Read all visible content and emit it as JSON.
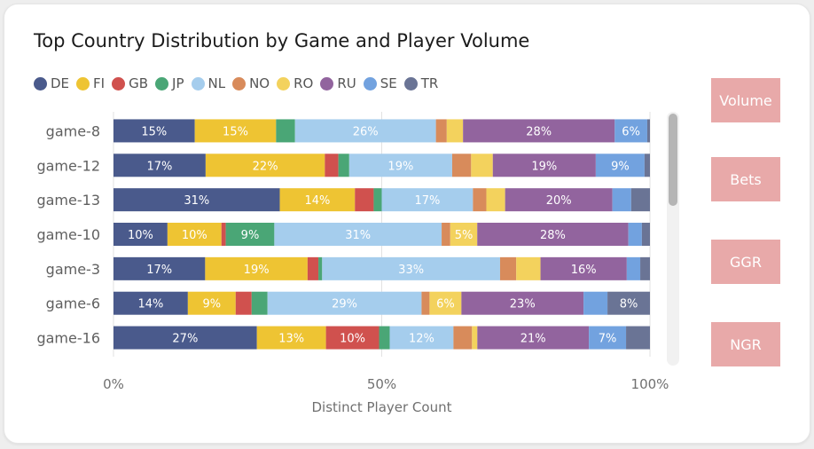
{
  "title": "Top Country Distribution by Game and Player Volume",
  "legend": [
    {
      "label": "DE",
      "color": "#4a5a8c"
    },
    {
      "label": "FI",
      "color": "#eec433"
    },
    {
      "label": "GB",
      "color": "#d0514e"
    },
    {
      "label": "JP",
      "color": "#4aa676"
    },
    {
      "label": "NL",
      "color": "#a5cded"
    },
    {
      "label": "NO",
      "color": "#d88b5b"
    },
    {
      "label": "RO",
      "color": "#f3d25d"
    },
    {
      "label": "RU",
      "color": "#92649e"
    },
    {
      "label": "SE",
      "color": "#72a2df"
    },
    {
      "label": "TR",
      "color": "#6a7495"
    }
  ],
  "buttons": {
    "volume": "Volume",
    "bets": "Bets",
    "ggr": "GGR",
    "ngr": "NGR"
  },
  "chart_data": {
    "type": "bar",
    "orientation": "horizontal",
    "stacked": "100%",
    "title": "Top Country Distribution by Game and Player Volume",
    "xlabel": "Distinct Player Count",
    "ylabel": "",
    "xlim": [
      0,
      100
    ],
    "xticks": [
      "0%",
      "50%",
      "100%"
    ],
    "categories": [
      "game-8",
      "game-12",
      "game-13",
      "game-10",
      "game-3",
      "game-6",
      "game-16"
    ],
    "series": [
      {
        "name": "DE",
        "color": "#4a5a8c",
        "values": [
          15,
          17,
          31,
          10,
          17,
          14,
          27
        ]
      },
      {
        "name": "FI",
        "color": "#eec433",
        "values": [
          15,
          22,
          14,
          10,
          19,
          9,
          13
        ]
      },
      {
        "name": "GB",
        "color": "#d0514e",
        "values": [
          0,
          2.5,
          3.5,
          0.8,
          2,
          3,
          10
        ]
      },
      {
        "name": "JP",
        "color": "#4aa676",
        "values": [
          3.5,
          2,
          1.5,
          9,
          0.7,
          3,
          2
        ]
      },
      {
        "name": "NL",
        "color": "#a5cded",
        "values": [
          26,
          19,
          17,
          31,
          33,
          29,
          12
        ]
      },
      {
        "name": "NO",
        "color": "#d88b5b",
        "values": [
          2,
          3.5,
          2.5,
          1.6,
          3,
          1.5,
          3.5
        ]
      },
      {
        "name": "RO",
        "color": "#f3d25d",
        "values": [
          3,
          4,
          3.5,
          5,
          4.5,
          6,
          1
        ]
      },
      {
        "name": "RU",
        "color": "#92649e",
        "values": [
          28,
          19,
          20,
          28,
          16,
          23,
          21
        ]
      },
      {
        "name": "SE",
        "color": "#72a2df",
        "values": [
          6,
          9,
          3.5,
          2.5,
          2.5,
          4.5,
          7
        ]
      },
      {
        "name": "TR",
        "color": "#6a7495",
        "values": [
          0.5,
          1,
          3.5,
          1.5,
          1.8,
          8,
          4.5
        ]
      }
    ],
    "data_labels": [
      [
        "15%",
        "15%",
        "",
        "",
        "26%",
        "",
        "",
        "28%",
        "6%",
        ""
      ],
      [
        "17%",
        "22%",
        "",
        "",
        "19%",
        "",
        "",
        "19%",
        "9%",
        ""
      ],
      [
        "31%",
        "14%",
        "",
        "",
        "17%",
        "",
        "",
        "20%",
        "",
        ""
      ],
      [
        "10%",
        "10%",
        "",
        "9%",
        "31%",
        "",
        "5%",
        "28%",
        "",
        ""
      ],
      [
        "17%",
        "19%",
        "",
        "",
        "33%",
        "",
        "",
        "16%",
        "",
        ""
      ],
      [
        "14%",
        "9%",
        "",
        "",
        "29%",
        "",
        "6%",
        "23%",
        "",
        "8%"
      ],
      [
        "27%",
        "13%",
        "10%",
        "",
        "12%",
        "",
        "",
        "21%",
        "7%",
        ""
      ]
    ],
    "gridlines": true,
    "legend_position": "top-left"
  }
}
